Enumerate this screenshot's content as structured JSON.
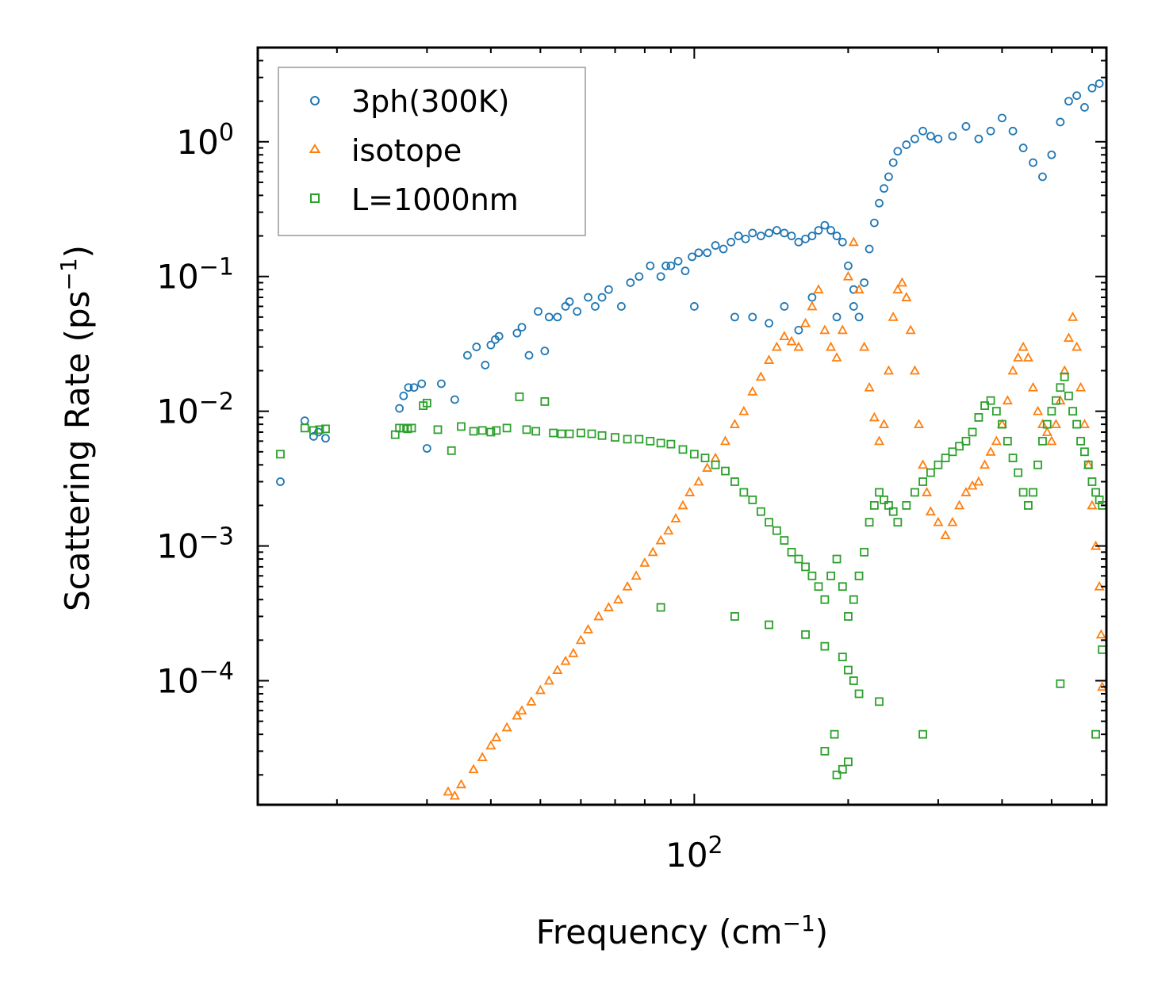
{
  "chart_data": {
    "type": "scatter",
    "xscale": "log",
    "yscale": "log",
    "xlabel": "Frequency (cm",
    "xlabel_sup": "−1",
    "xlabel_end": ")",
    "ylabel": "Scattering Rate (ps",
    "ylabel_sup": "−1",
    "ylabel_end": ")",
    "xlim": [
      14,
      640
    ],
    "ylim": [
      1.2e-05,
      5
    ],
    "x_major_ticks": [
      {
        "value": 100,
        "base": "10",
        "exp": "2"
      }
    ],
    "y_major_ticks": [
      {
        "value": 1,
        "base": "10",
        "exp": "0"
      },
      {
        "value": 0.1,
        "base": "10",
        "exp": "−1"
      },
      {
        "value": 0.01,
        "base": "10",
        "exp": "−2"
      },
      {
        "value": 0.001,
        "base": "10",
        "exp": "−3"
      },
      {
        "value": 0.0001,
        "base": "10",
        "exp": "−4"
      }
    ],
    "legend_position": "upper-left",
    "series": [
      {
        "name": "3ph(300K)",
        "color": "#1f77b4",
        "marker": "circle",
        "x": [
          15.5,
          17.3,
          18.0,
          18.4,
          19.0,
          26.5,
          27.0,
          27.6,
          28.3,
          29.3,
          30.0,
          32.0,
          34.0,
          36.0,
          37.5,
          39.0,
          40.0,
          40.8,
          41.5,
          45.0,
          46.0,
          47.5,
          49.5,
          51.0,
          52.0,
          54.0,
          56.0,
          57.0,
          59.0,
          62.0,
          64.0,
          66.0,
          68.0,
          72.0,
          75.0,
          78.0,
          82.0,
          86.0,
          88.0,
          90.0,
          93.0,
          96.0,
          99.0,
          102.0,
          106.0,
          110.0,
          114.0,
          118.0,
          122.0,
          126.0,
          130.0,
          135.0,
          140.0,
          145.0,
          150.0,
          155.0,
          160.0,
          165.0,
          170.0,
          175.0,
          180.0,
          185.0,
          190.0,
          195.0,
          200.0,
          205.0,
          210.0,
          215.0,
          220.0,
          225.0,
          230.0,
          235.0,
          240.0,
          245.0,
          250.0,
          260.0,
          270.0,
          280.0,
          290.0,
          300.0,
          320.0,
          340.0,
          360.0,
          380.0,
          400.0,
          420.0,
          440.0,
          460.0,
          480.0,
          500.0,
          520.0,
          540.0,
          560.0,
          580.0,
          600.0,
          620.0,
          130.0,
          150.0,
          170.0,
          190.0,
          205.0,
          100.0,
          120.0,
          140.0,
          160.0
        ],
        "y": [
          0.003,
          0.0085,
          0.0065,
          0.007,
          0.0063,
          0.0105,
          0.013,
          0.015,
          0.015,
          0.016,
          0.0053,
          0.016,
          0.0122,
          0.026,
          0.03,
          0.022,
          0.031,
          0.034,
          0.036,
          0.038,
          0.042,
          0.026,
          0.055,
          0.028,
          0.05,
          0.05,
          0.06,
          0.065,
          0.055,
          0.07,
          0.06,
          0.07,
          0.08,
          0.06,
          0.09,
          0.1,
          0.12,
          0.1,
          0.12,
          0.12,
          0.13,
          0.11,
          0.14,
          0.15,
          0.15,
          0.17,
          0.16,
          0.18,
          0.2,
          0.19,
          0.21,
          0.2,
          0.21,
          0.22,
          0.21,
          0.2,
          0.18,
          0.19,
          0.2,
          0.22,
          0.24,
          0.22,
          0.2,
          0.18,
          0.12,
          0.08,
          0.05,
          0.09,
          0.16,
          0.25,
          0.35,
          0.45,
          0.55,
          0.7,
          0.85,
          0.95,
          1.05,
          1.2,
          1.1,
          1.05,
          1.1,
          1.3,
          1.05,
          1.2,
          1.5,
          1.2,
          0.9,
          0.7,
          0.55,
          0.8,
          1.4,
          2.0,
          2.2,
          1.8,
          2.5,
          2.7,
          0.05,
          0.06,
          0.07,
          0.05,
          0.06,
          0.06,
          0.05,
          0.045,
          0.04
        ]
      },
      {
        "name": "isotope",
        "color": "#ff7f0e",
        "marker": "triangle",
        "x": [
          33.0,
          34.0,
          35.0,
          37.0,
          38.5,
          40.0,
          41.0,
          43.0,
          45.0,
          46.0,
          48.0,
          50.0,
          52.0,
          54.0,
          56.0,
          58.0,
          60.0,
          62.0,
          65.0,
          68.0,
          71.0,
          74.0,
          77.0,
          80.0,
          83.0,
          86.0,
          89.0,
          92.0,
          95.0,
          98.0,
          102.0,
          106.0,
          110.0,
          115.0,
          120.0,
          125.0,
          130.0,
          135.0,
          140.0,
          145.0,
          150.0,
          155.0,
          160.0,
          165.0,
          170.0,
          175.0,
          180.0,
          185.0,
          190.0,
          195.0,
          200.0,
          205.0,
          210.0,
          215.0,
          220.0,
          225.0,
          230.0,
          235.0,
          240.0,
          245.0,
          250.0,
          255.0,
          260.0,
          265.0,
          270.0,
          275.0,
          280.0,
          285.0,
          290.0,
          300.0,
          310.0,
          320.0,
          330.0,
          340.0,
          350.0,
          360.0,
          370.0,
          380.0,
          390.0,
          400.0,
          410.0,
          420.0,
          430.0,
          440.0,
          450.0,
          460.0,
          470.0,
          480.0,
          490.0,
          500.0,
          510.0,
          520.0,
          530.0,
          540.0,
          550.0,
          560.0,
          570.0,
          580.0,
          590.0,
          600.0,
          610.0,
          620.0,
          625.0,
          628.0
        ],
        "y": [
          1.5e-05,
          1.4e-05,
          1.7e-05,
          2.2e-05,
          2.7e-05,
          3.3e-05,
          3.8e-05,
          4.5e-05,
          5.5e-05,
          6e-05,
          7e-05,
          8.5e-05,
          0.0001,
          0.00012,
          0.00014,
          0.00016,
          0.0002,
          0.00024,
          0.0003,
          0.00035,
          0.0004,
          0.0005,
          0.0006,
          0.00075,
          0.0009,
          0.0011,
          0.0013,
          0.0016,
          0.002,
          0.0025,
          0.003,
          0.0038,
          0.0045,
          0.006,
          0.008,
          0.01,
          0.014,
          0.018,
          0.024,
          0.03,
          0.036,
          0.033,
          0.03,
          0.045,
          0.06,
          0.08,
          0.04,
          0.03,
          0.025,
          0.04,
          0.1,
          0.18,
          0.08,
          0.03,
          0.015,
          0.009,
          0.006,
          0.008,
          0.02,
          0.05,
          0.08,
          0.09,
          0.07,
          0.04,
          0.02,
          0.008,
          0.004,
          0.0025,
          0.0018,
          0.0015,
          0.0012,
          0.0015,
          0.002,
          0.0025,
          0.0028,
          0.003,
          0.004,
          0.005,
          0.006,
          0.008,
          0.012,
          0.02,
          0.025,
          0.03,
          0.025,
          0.015,
          0.01,
          0.008,
          0.007,
          0.006,
          0.008,
          0.012,
          0.02,
          0.035,
          0.05,
          0.03,
          0.015,
          0.008,
          0.004,
          0.002,
          0.001,
          0.0005,
          0.00022,
          9e-05
        ]
      },
      {
        "name": "L=1000nm",
        "color": "#2ca02c",
        "marker": "square",
        "x": [
          15.5,
          17.3,
          18.0,
          18.5,
          19.0,
          26.0,
          26.5,
          27.0,
          27.5,
          28.0,
          29.5,
          30.0,
          31.5,
          33.5,
          35.0,
          37.0,
          38.5,
          40.0,
          41.0,
          43.0,
          45.5,
          47.0,
          49.0,
          51.0,
          53.0,
          55.0,
          57.0,
          60.0,
          63.0,
          66.0,
          70.0,
          74.0,
          78.0,
          82.0,
          86.0,
          90.0,
          95.0,
          100.0,
          105.0,
          110.0,
          115.0,
          120.0,
          125.0,
          130.0,
          135.0,
          140.0,
          145.0,
          150.0,
          155.0,
          160.0,
          165.0,
          170.0,
          175.0,
          180.0,
          185.0,
          190.0,
          195.0,
          200.0,
          205.0,
          210.0,
          215.0,
          220.0,
          225.0,
          230.0,
          235.0,
          240.0,
          245.0,
          250.0,
          260.0,
          270.0,
          280.0,
          290.0,
          300.0,
          310.0,
          320.0,
          330.0,
          340.0,
          350.0,
          360.0,
          370.0,
          380.0,
          390.0,
          400.0,
          410.0,
          420.0,
          430.0,
          440.0,
          450.0,
          460.0,
          470.0,
          480.0,
          490.0,
          500.0,
          510.0,
          520.0,
          530.0,
          540.0,
          550.0,
          560.0,
          570.0,
          580.0,
          590.0,
          600.0,
          610.0,
          620.0,
          628.0,
          86.0,
          120.0,
          140.0,
          165.0,
          180.0,
          195.0,
          200.0,
          205.0,
          210.0,
          230.0,
          280.0,
          520.0,
          610.0,
          628.0,
          190.0,
          200.0,
          195.0,
          188.0,
          180.0
        ],
        "y": [
          0.0048,
          0.0075,
          0.0072,
          0.0073,
          0.0074,
          0.0067,
          0.0075,
          0.0075,
          0.0074,
          0.0075,
          0.011,
          0.0115,
          0.0073,
          0.0051,
          0.0077,
          0.0071,
          0.0072,
          0.007,
          0.0072,
          0.0075,
          0.0128,
          0.0073,
          0.0071,
          0.0118,
          0.0069,
          0.0068,
          0.0068,
          0.0069,
          0.0068,
          0.0066,
          0.0064,
          0.0062,
          0.0062,
          0.006,
          0.0058,
          0.0057,
          0.0052,
          0.0048,
          0.0045,
          0.004,
          0.0036,
          0.003,
          0.0025,
          0.0022,
          0.0018,
          0.0015,
          0.0013,
          0.0011,
          0.0009,
          0.0008,
          0.0007,
          0.0006,
          0.0005,
          0.0004,
          0.0006,
          0.0008,
          0.0005,
          0.0003,
          0.0004,
          0.0006,
          0.0009,
          0.0015,
          0.002,
          0.0025,
          0.0022,
          0.002,
          0.0018,
          0.0015,
          0.002,
          0.0025,
          0.003,
          0.0035,
          0.004,
          0.0045,
          0.005,
          0.0055,
          0.006,
          0.007,
          0.009,
          0.011,
          0.012,
          0.01,
          0.008,
          0.006,
          0.0045,
          0.0035,
          0.0025,
          0.002,
          0.0025,
          0.004,
          0.006,
          0.008,
          0.01,
          0.012,
          0.015,
          0.018,
          0.013,
          0.01,
          0.008,
          0.006,
          0.005,
          0.004,
          0.003,
          0.0025,
          0.0022,
          0.002,
          0.00035,
          0.0003,
          0.00026,
          0.00022,
          0.00018,
          0.00015,
          0.00012,
          0.0001,
          8e-05,
          7e-05,
          4e-05,
          9.5e-05,
          4e-05,
          0.00017,
          2e-05,
          2.5e-05,
          2.2e-05,
          4e-05,
          3e-05
        ]
      }
    ]
  }
}
